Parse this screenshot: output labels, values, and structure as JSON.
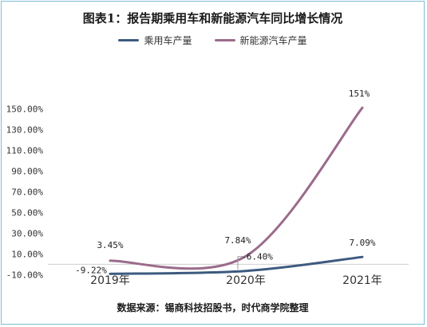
{
  "chart_data": {
    "type": "line",
    "title": "图表1：报告期乘用车和新能源汽车同比增长情况",
    "source": "数据来源：锡商科技招股书，时代商学院整理",
    "categories": [
      "2019年",
      "2020年",
      "2021年"
    ],
    "yticks": [
      "150.00%",
      "130.00%",
      "110.00%",
      "90.00%",
      "70.00%",
      "50.00%",
      "30.00%",
      "10.00%",
      "-10.00%"
    ],
    "ylim": [
      -10,
      160
    ],
    "series": [
      {
        "name": "乘用车产量",
        "color": "#3d5a80",
        "values": [
          -9.22,
          -6.4,
          7.09
        ],
        "labels": [
          "-9.22%",
          "-6.40%",
          "7.09%"
        ]
      },
      {
        "name": "新能源汽车产量",
        "color": "#9b6b8a",
        "values": [
          3.45,
          7.84,
          151
        ],
        "labels": [
          "3.45%",
          "7.84%",
          "151%"
        ]
      }
    ]
  }
}
